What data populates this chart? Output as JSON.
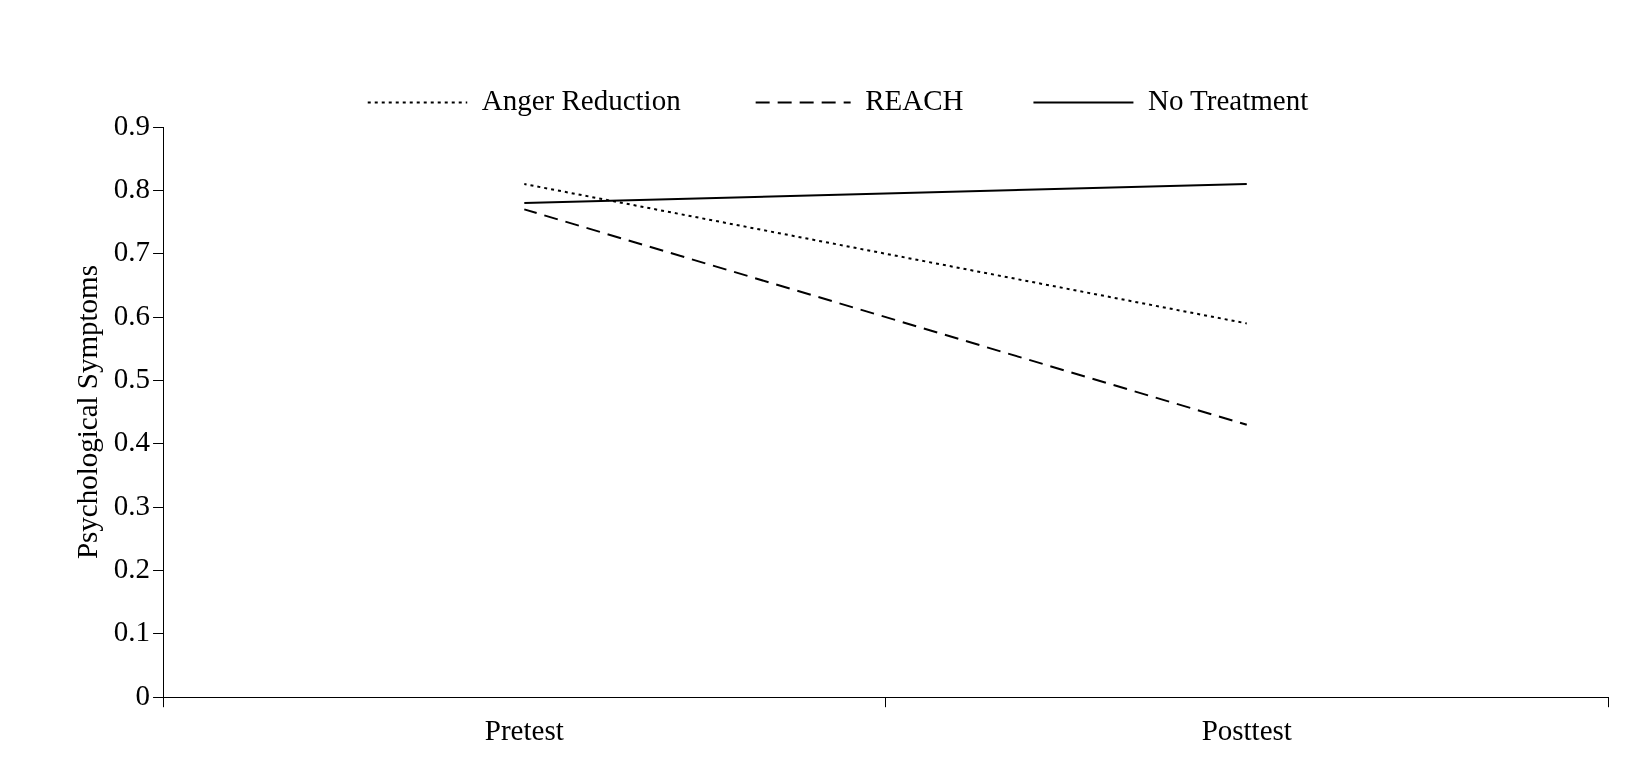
{
  "chart_data": {
    "type": "line",
    "ylabel": "Psychological Symptoms",
    "categories": [
      "Pretest",
      "Posttest"
    ],
    "series": [
      {
        "name": "Anger Reduction",
        "color": "#000000",
        "line_style": "dotted",
        "values": [
          0.81,
          0.59
        ]
      },
      {
        "name": "REACH",
        "color": "#000000",
        "line_style": "dashed",
        "values": [
          0.77,
          0.43
        ]
      },
      {
        "name": "No Treatment",
        "color": "#000000",
        "line_style": "solid",
        "values": [
          0.78,
          0.81
        ]
      }
    ],
    "ylim": [
      0,
      0.9
    ],
    "yticks": [
      0,
      0.1,
      0.2,
      0.3,
      0.4,
      0.5,
      0.6,
      0.7,
      0.8,
      0.9
    ],
    "grid": false,
    "legend": "top",
    "marker": "none"
  }
}
